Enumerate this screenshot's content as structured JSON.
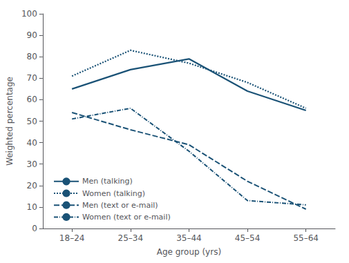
{
  "chart_data": {
    "type": "line",
    "xlabel": "Age group (yrs)",
    "ylabel": "Weighted percentage",
    "categories": [
      "18–24",
      "25–34",
      "35–44",
      "45–54",
      "55–64"
    ],
    "series": [
      {
        "name": "Men (talking)",
        "color": "#1a5276",
        "line_style": "solid",
        "values": [
          65,
          74,
          79,
          64,
          55
        ]
      },
      {
        "name": "Women (talking)",
        "color": "#1a5276",
        "line_style": "dotted",
        "values": [
          71,
          83,
          77,
          68,
          56
        ]
      },
      {
        "name": "Men (text or e-mail)",
        "color": "#1a5276",
        "line_style": "dashed",
        "values": [
          54,
          46,
          39,
          22,
          9
        ]
      },
      {
        "name": "Women (text or e-mail)",
        "color": "#1a5276",
        "line_style": "dashdot",
        "values": [
          51,
          56,
          36,
          13,
          11
        ]
      }
    ],
    "ylim": [
      0,
      100
    ],
    "yticks": [
      0,
      10,
      20,
      30,
      40,
      50,
      60,
      70,
      80,
      90,
      100
    ],
    "grid": false,
    "legend": "lower left"
  }
}
